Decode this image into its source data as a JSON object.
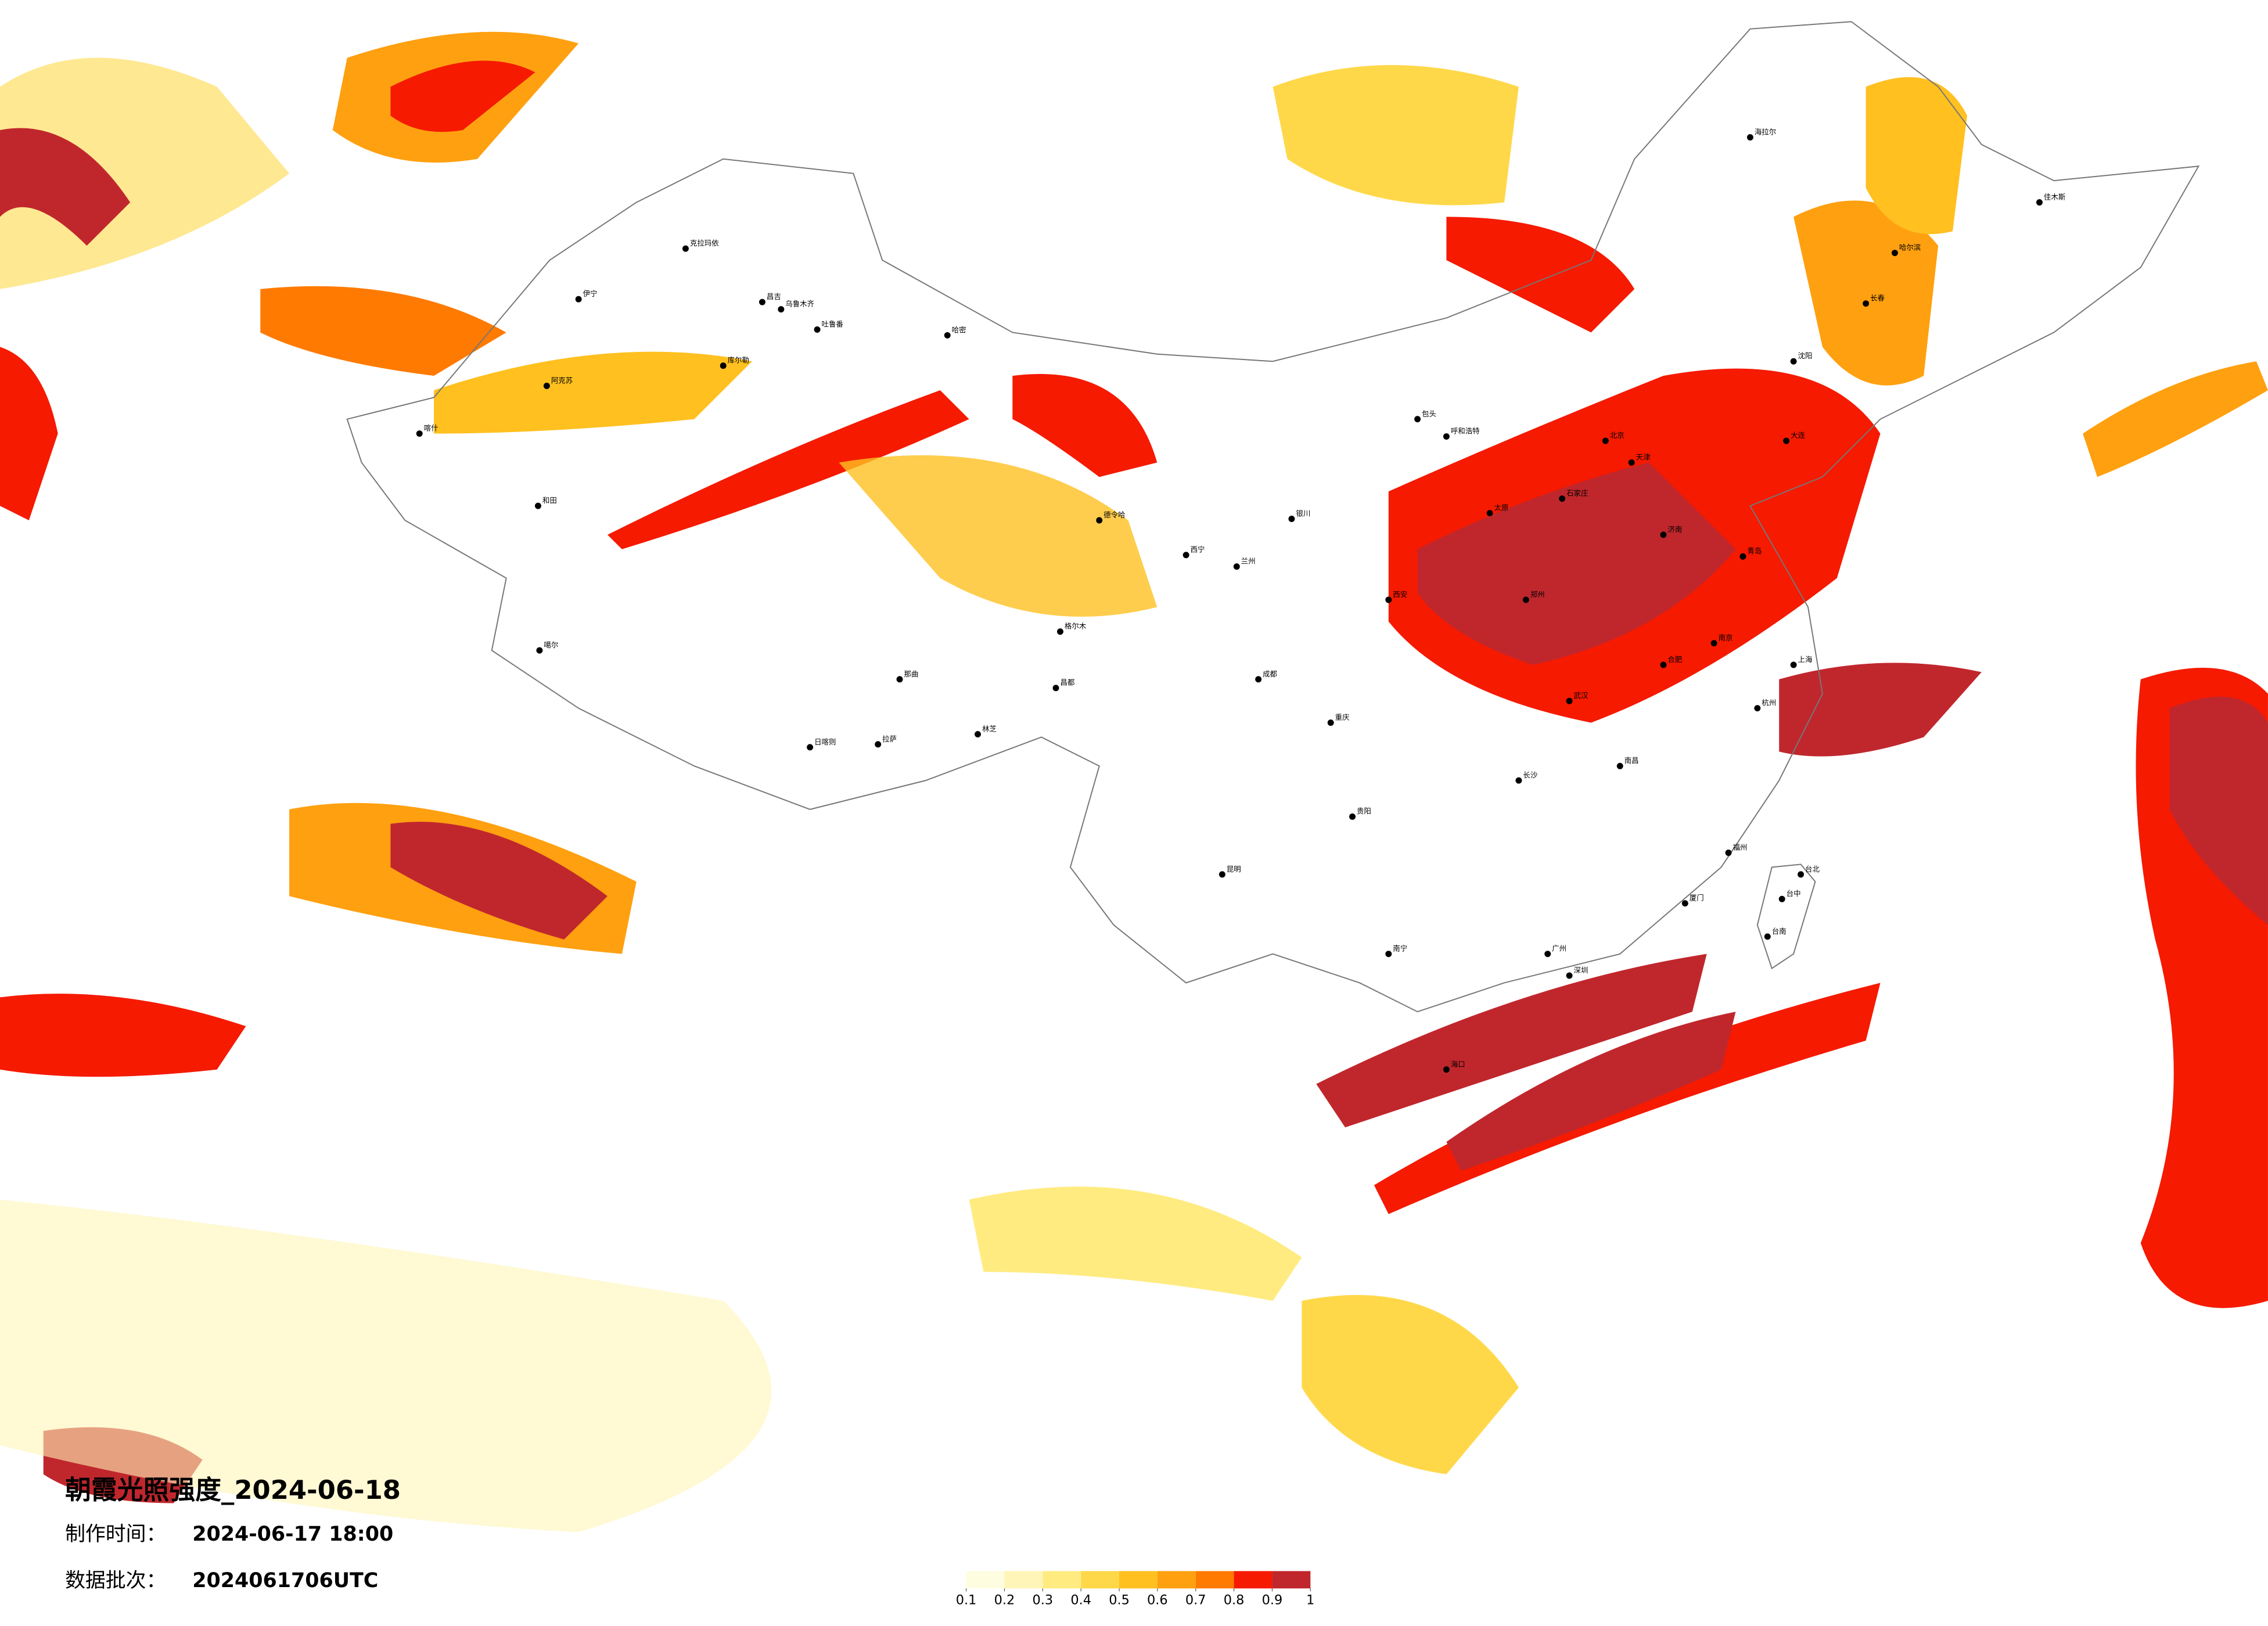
{
  "title": "朝霞光照强度_2024-06-18",
  "made_time": {
    "label": "制作时间：",
    "value": "2024-06-17 18:00"
  },
  "batch": {
    "label": "数据批次：",
    "value": "2024061706UTC"
  },
  "colorbar": {
    "ticks": [
      0.1,
      0.2,
      0.3,
      0.4,
      0.5,
      0.6,
      0.7,
      0.8,
      0.9,
      1
    ],
    "colors": [
      "#fffde0",
      "#fff5b8",
      "#ffeb80",
      "#ffd84a",
      "#ffc020",
      "#ffa010",
      "#ff7a00",
      "#f51a00",
      "#c0272d"
    ]
  },
  "cities": [
    "克拉玛依",
    "伊宁",
    "昌吉",
    "乌鲁木齐",
    "吐鲁番",
    "哈密",
    "阿克苏",
    "库尔勒",
    "和田",
    "喀什",
    "噶尔",
    "日喀则",
    "拉萨",
    "林芝",
    "那曲",
    "昌都",
    "格尔木",
    "德令哈",
    "西宁",
    "兰州",
    "银川",
    "呼和浩特",
    "包头",
    "北京",
    "天津",
    "石家庄",
    "太原",
    "济南",
    "郑州",
    "西安",
    "武汉",
    "长沙",
    "南昌",
    "合肥",
    "南京",
    "上海",
    "杭州",
    "福州",
    "厦门",
    "广州",
    "深圳",
    "南宁",
    "海口",
    "贵阳",
    "昆明",
    "成都",
    "重庆",
    "沈阳",
    "长春",
    "哈尔滨",
    "海拉尔",
    "佳木斯",
    "大连",
    "青岛",
    "台北",
    "台中",
    "台南"
  ]
}
